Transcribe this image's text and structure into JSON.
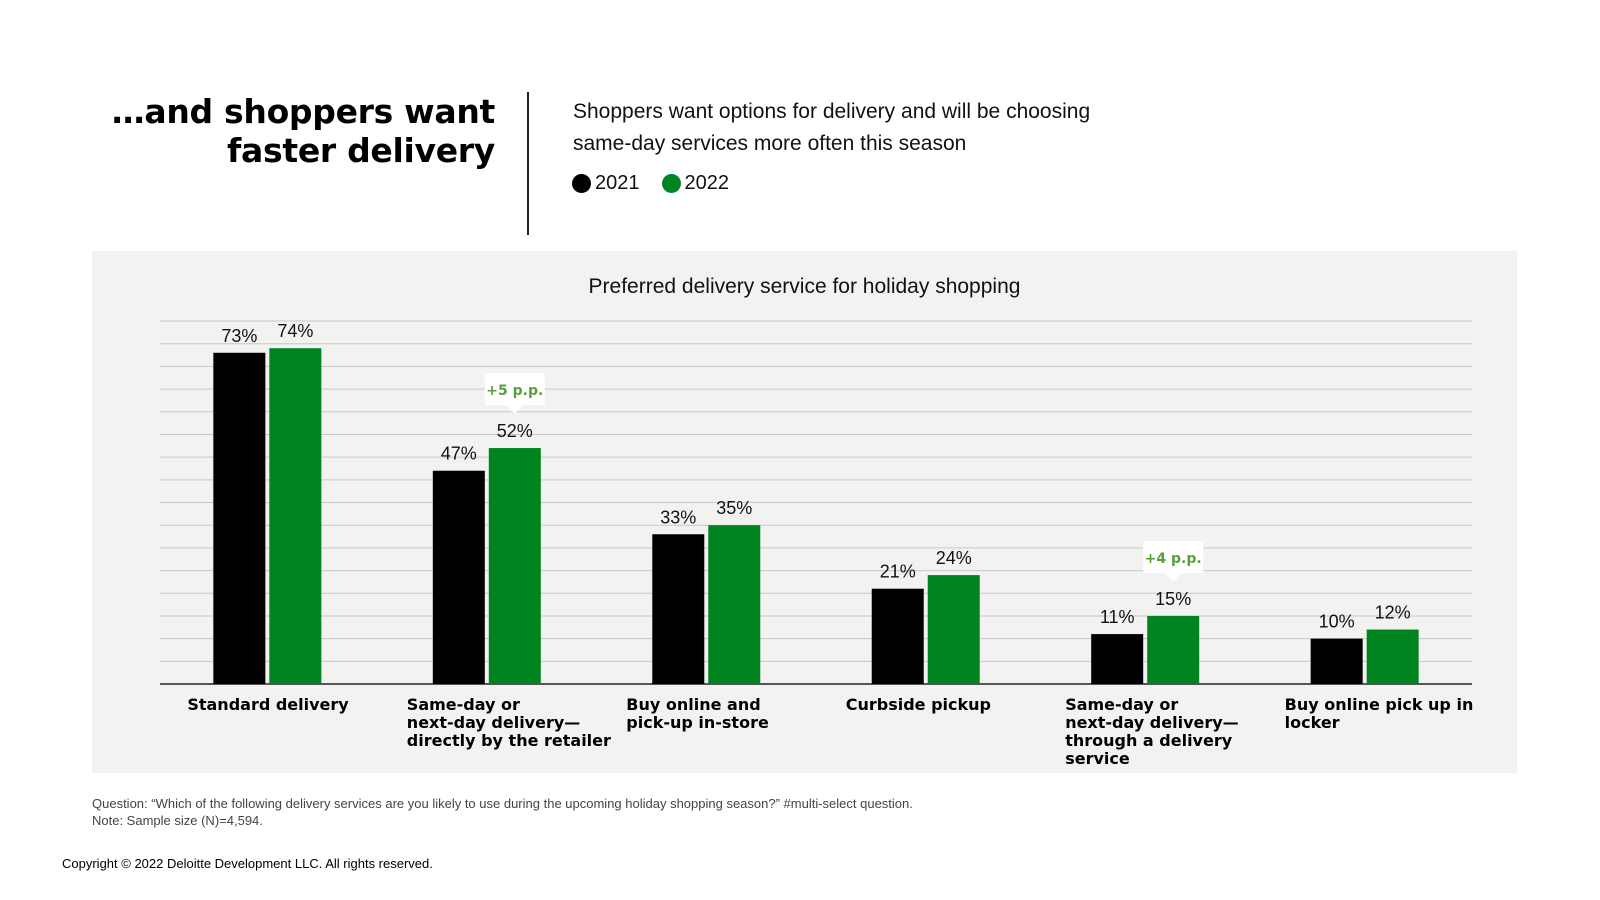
{
  "header": {
    "title_line1": "…and shoppers want",
    "title_line2": "faster delivery",
    "subtitle_line1": "Shoppers want options for delivery and will be choosing",
    "subtitle_line2": "same-day services more often this season"
  },
  "legend": [
    {
      "label": "2021",
      "color": "#000000"
    },
    {
      "label": "2022",
      "color": "#00841f"
    }
  ],
  "chart_data": {
    "type": "bar",
    "title": "Preferred delivery service for holiday shopping",
    "xlabel": "",
    "ylabel": "",
    "ylim": [
      0,
      80
    ],
    "grid": true,
    "legend_position": "top-left",
    "categories": [
      [
        "Standard delivery"
      ],
      [
        "Same-day or",
        "next-day delivery—",
        "directly by the retailer"
      ],
      [
        "Buy online and",
        "pick-up in-store"
      ],
      [
        "Curbside pickup"
      ],
      [
        "Same-day or",
        "next-day delivery—",
        "through a delivery",
        "service"
      ],
      [
        "Buy online pick up in",
        "locker"
      ]
    ],
    "series": [
      {
        "name": "2021",
        "color": "#000000",
        "values": [
          73,
          47,
          33,
          21,
          11,
          10
        ],
        "labels": [
          "73%",
          "47%",
          "33%",
          "21%",
          "11%",
          "10%"
        ]
      },
      {
        "name": "2022",
        "color": "#00841f",
        "values": [
          74,
          52,
          35,
          24,
          15,
          12
        ],
        "labels": [
          "74%",
          "52%",
          "35%",
          "24%",
          "15%",
          "12%"
        ]
      }
    ],
    "annotations": [
      {
        "category_index": 1,
        "series_index": 1,
        "text": "+5 p.p.",
        "color": "#5a9e3a"
      },
      {
        "category_index": 4,
        "series_index": 1,
        "text": "+4 p.p.",
        "color": "#5a9e3a"
      }
    ]
  },
  "footnote": {
    "question": "Question: “Which of the following delivery services are you likely to use during the upcoming holiday shopping season?” #multi-select question.",
    "note": "Note: Sample size (N)=4,594."
  },
  "copyright": "Copyright © 2022 Deloitte Development LLC. All rights reserved."
}
